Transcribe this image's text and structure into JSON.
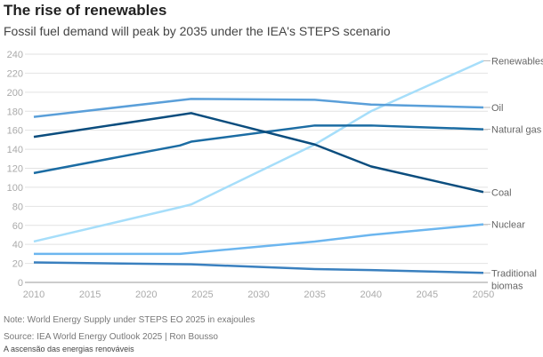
{
  "title": "The rise of renewables",
  "subtitle": "Fossil fuel demand will peak by 2035 under the IEA's STEPS scenario",
  "note": "Note: World Energy Supply under STEPS EO 2025 in exajoules",
  "source": "Source: IEA World Energy Outlook 2025 | Ron Bousso",
  "caption": "A ascensão das energias renováveis",
  "chart_data": {
    "type": "line",
    "title": "The rise of renewables",
    "subtitle": "Fossil fuel demand will peak by 2035 under the IEA's STEPS scenario",
    "xlim": [
      2010,
      2050
    ],
    "ylim": [
      0,
      240
    ],
    "xticks": [
      2010,
      2015,
      2020,
      2025,
      2030,
      2035,
      2040,
      2045,
      2050
    ],
    "yticks": [
      0,
      20,
      40,
      60,
      80,
      100,
      120,
      140,
      160,
      180,
      200,
      220,
      240
    ],
    "grid": true,
    "legend": "inline-right",
    "series": [
      {
        "name": "Renewables",
        "color": "#a6defa",
        "x": [
          2010,
          2023,
          2024,
          2035,
          2040,
          2050
        ],
        "y": [
          43,
          79,
          82,
          145,
          180,
          233
        ]
      },
      {
        "name": "Oil",
        "color": "#5a9fd9",
        "x": [
          2010,
          2024,
          2035,
          2040,
          2050
        ],
        "y": [
          174,
          193,
          192,
          187,
          184
        ]
      },
      {
        "name": "Natural gas",
        "color": "#1b6ca3",
        "x": [
          2010,
          2023,
          2024,
          2035,
          2040,
          2050
        ],
        "y": [
          115,
          144,
          148,
          165,
          165,
          161
        ]
      },
      {
        "name": "Coal",
        "color": "#0b4d7e",
        "x": [
          2010,
          2024,
          2035,
          2040,
          2050
        ],
        "y": [
          153,
          178,
          145,
          122,
          95
        ]
      },
      {
        "name": "Nuclear",
        "color": "#6cb6ef",
        "x": [
          2010,
          2023,
          2035,
          2040,
          2050
        ],
        "y": [
          30,
          30,
          43,
          50,
          61
        ]
      },
      {
        "name": "Traditional biomas",
        "color": "#3a80bf",
        "x": [
          2010,
          2024,
          2035,
          2040,
          2050
        ],
        "y": [
          21,
          19,
          14,
          13,
          10
        ]
      }
    ]
  }
}
